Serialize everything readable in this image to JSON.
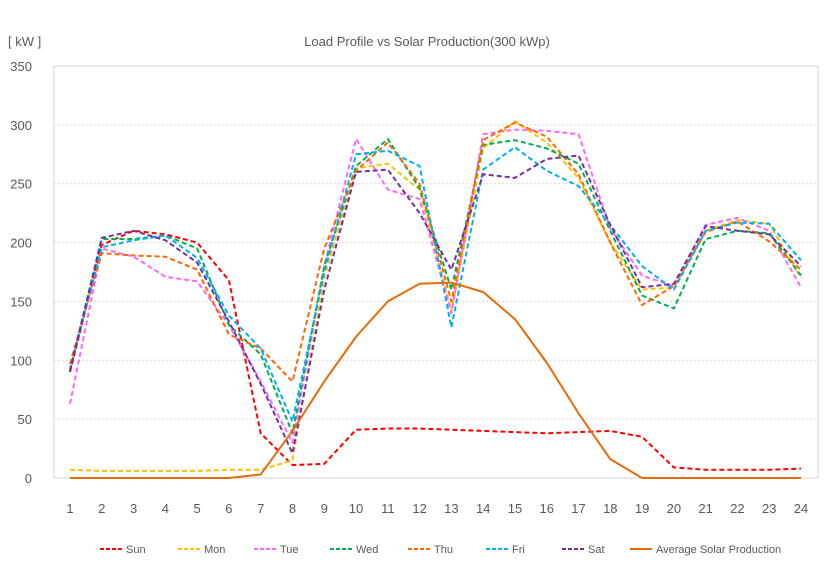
{
  "chart_data": {
    "type": "line",
    "title": "Load Profile vs Solar Production(300 kWp)",
    "ylabel": "[ kW ]",
    "xlabel": "",
    "ylim": [
      0,
      350
    ],
    "yticks": [
      0,
      50,
      100,
      150,
      200,
      250,
      300,
      350
    ],
    "grid": true,
    "legend_position": "bottom",
    "x": [
      1,
      2,
      3,
      4,
      5,
      6,
      7,
      8,
      9,
      10,
      11,
      12,
      13,
      14,
      15,
      16,
      17,
      18,
      19,
      20,
      21,
      22,
      23,
      24
    ],
    "series": [
      {
        "name": "Sun",
        "color": "#FF0000",
        "dashed": true,
        "values": [
          90,
          198,
          210,
          207,
          200,
          168,
          38,
          11,
          12,
          41,
          42,
          42,
          41,
          40,
          39,
          38,
          39,
          40,
          35,
          9,
          7,
          7,
          7,
          8
        ]
      },
      {
        "name": "Mon",
        "color": "#FFC000",
        "dashed": true,
        "values": [
          7,
          6,
          6,
          6,
          6,
          7,
          7,
          15,
          170,
          263,
          267,
          245,
          142,
          280,
          303,
          285,
          255,
          200,
          160,
          162,
          210,
          219,
          216,
          170
        ]
      },
      {
        "name": "Tue",
        "color": "#FF66FF",
        "dashed": true,
        "values": [
          63,
          195,
          188,
          171,
          167,
          130,
          82,
          30,
          180,
          288,
          245,
          237,
          140,
          292,
          296,
          295,
          292,
          212,
          172,
          163,
          215,
          221,
          210,
          162
        ]
      },
      {
        "name": "Wed",
        "color": "#00B050",
        "dashed": true,
        "values": [
          92,
          203,
          203,
          206,
          195,
          130,
          105,
          38,
          180,
          265,
          288,
          246,
          160,
          283,
          287,
          280,
          267,
          210,
          155,
          144,
          203,
          210,
          208,
          172
        ]
      },
      {
        "name": "Thu",
        "color": "#FF6600",
        "dashed": true,
        "values": [
          97,
          191,
          189,
          188,
          177,
          122,
          110,
          82,
          195,
          261,
          285,
          250,
          150,
          287,
          302,
          290,
          258,
          200,
          147,
          163,
          209,
          218,
          201,
          177
        ]
      },
      {
        "name": "Fri",
        "color": "#00B0F0",
        "dashed": true,
        "values": [
          92,
          196,
          202,
          206,
          187,
          138,
          110,
          48,
          175,
          275,
          278,
          265,
          128,
          262,
          281,
          261,
          248,
          215,
          180,
          160,
          210,
          217,
          216,
          185
        ]
      },
      {
        "name": "Sat",
        "color": "#7030A0",
        "dashed": true,
        "values": [
          91,
          204,
          210,
          202,
          183,
          133,
          80,
          21,
          160,
          260,
          262,
          225,
          177,
          258,
          255,
          271,
          274,
          215,
          162,
          165,
          214,
          210,
          207,
          180
        ]
      },
      {
        "name": "Average Solar Production",
        "color": "#E46C0A",
        "dashed": false,
        "values": [
          0,
          0,
          0,
          0,
          0,
          0,
          3,
          40,
          82,
          120,
          150,
          165,
          166,
          158,
          135,
          98,
          55,
          16,
          0,
          0,
          0,
          0,
          0,
          0
        ]
      }
    ]
  }
}
